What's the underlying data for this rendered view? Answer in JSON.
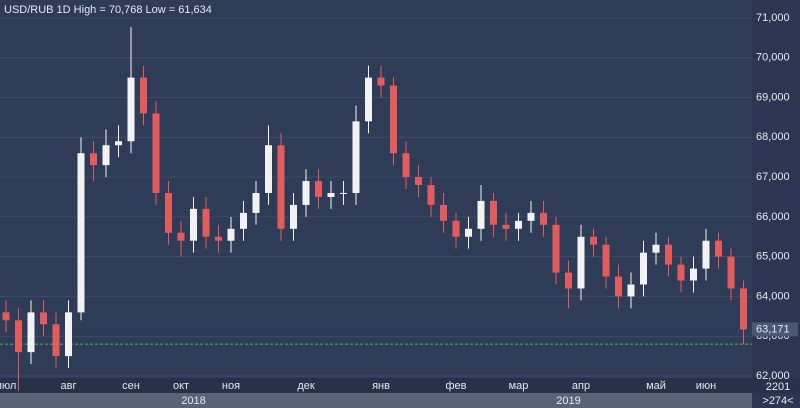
{
  "chart_data": {
    "type": "candlestick",
    "title": "USD/RUB 1D High = 70,768 Low = 61,634",
    "categories": [
      "июл",
      null,
      null,
      null,
      null,
      "авг",
      null,
      null,
      null,
      null,
      "сен",
      null,
      null,
      null,
      "окт",
      null,
      null,
      null,
      "ноя",
      null,
      null,
      null,
      null,
      null,
      "дек",
      null,
      null,
      null,
      null,
      null,
      "янв",
      null,
      null,
      null,
      null,
      null,
      "фев",
      null,
      null,
      null,
      null,
      "мар",
      null,
      null,
      null,
      null,
      "апр",
      null,
      null,
      null,
      null,
      null,
      "май",
      null,
      null,
      null,
      "июн",
      null,
      null,
      null
    ],
    "years": [
      null,
      null,
      null,
      null,
      null,
      null,
      null,
      null,
      null,
      null,
      null,
      null,
      null,
      null,
      null,
      "2018",
      null,
      null,
      null,
      null,
      null,
      null,
      null,
      null,
      null,
      null,
      null,
      null,
      null,
      null,
      null,
      null,
      null,
      null,
      null,
      null,
      null,
      null,
      null,
      null,
      null,
      null,
      null,
      null,
      null,
      "2019",
      null,
      null,
      null,
      null,
      null,
      null,
      null,
      null,
      null,
      null,
      null,
      null,
      null,
      null
    ],
    "open": [
      63.6,
      63.4,
      62.6,
      63.6,
      63.3,
      62.5,
      63.6,
      67.6,
      67.3,
      67.8,
      67.9,
      69.5,
      68.6,
      66.6,
      65.6,
      65.4,
      66.2,
      65.5,
      65.4,
      65.7,
      66.1,
      66.6,
      67.8,
      65.7,
      66.3,
      66.9,
      66.5,
      66.6,
      66.6,
      68.4,
      69.5,
      69.3,
      67.6,
      67.0,
      66.8,
      66.3,
      65.9,
      65.5,
      65.7,
      66.4,
      65.8,
      65.7,
      65.9,
      66.1,
      65.8,
      64.6,
      64.2,
      65.5,
      65.3,
      64.5,
      64.0,
      64.3,
      65.1,
      65.3,
      64.8,
      64.4,
      64.7,
      65.4,
      65.0,
      64.2
    ],
    "high": [
      63.9,
      63.7,
      63.9,
      63.9,
      63.6,
      63.9,
      68.0,
      67.9,
      68.2,
      68.3,
      70.768,
      69.8,
      68.9,
      66.9,
      65.9,
      66.5,
      66.5,
      65.8,
      66.0,
      66.4,
      66.9,
      68.3,
      68.1,
      66.6,
      67.2,
      67.2,
      66.9,
      66.9,
      68.8,
      69.8,
      69.8,
      69.5,
      67.9,
      67.3,
      67.0,
      66.6,
      66.1,
      66.0,
      66.8,
      66.6,
      66.1,
      66.1,
      66.4,
      66.4,
      66.0,
      64.9,
      65.8,
      65.7,
      65.5,
      64.8,
      64.6,
      65.4,
      65.6,
      65.5,
      65.0,
      65.0,
      65.7,
      65.6,
      65.2,
      64.4
    ],
    "low": [
      63.1,
      61.634,
      62.3,
      63.0,
      62.2,
      62.2,
      63.4,
      66.9,
      67.0,
      67.5,
      67.6,
      68.3,
      66.3,
      65.3,
      65.0,
      65.1,
      65.2,
      65.1,
      65.1,
      65.4,
      65.8,
      66.3,
      65.4,
      65.4,
      66.0,
      66.2,
      66.2,
      66.3,
      66.3,
      68.1,
      69.0,
      67.3,
      66.7,
      66.5,
      66.0,
      65.6,
      65.2,
      65.2,
      65.4,
      65.5,
      65.4,
      65.4,
      65.6,
      65.5,
      64.3,
      63.7,
      63.9,
      65.0,
      64.2,
      63.7,
      63.7,
      64.0,
      64.8,
      64.5,
      64.1,
      64.1,
      64.4,
      64.7,
      63.9,
      62.8
    ],
    "close": [
      63.4,
      62.6,
      63.6,
      63.3,
      62.5,
      63.6,
      67.6,
      67.3,
      67.8,
      67.9,
      69.5,
      68.6,
      66.6,
      65.6,
      65.4,
      66.2,
      65.5,
      65.4,
      65.7,
      66.1,
      66.6,
      67.8,
      65.7,
      66.3,
      66.9,
      66.5,
      66.6,
      66.6,
      68.4,
      69.5,
      69.3,
      67.6,
      67.0,
      66.8,
      66.3,
      65.9,
      65.5,
      65.7,
      66.4,
      65.8,
      65.7,
      65.9,
      66.1,
      65.8,
      64.6,
      64.2,
      65.5,
      65.3,
      64.5,
      64.0,
      64.3,
      65.1,
      65.3,
      64.8,
      64.4,
      64.7,
      65.4,
      65.0,
      64.2,
      63.171
    ],
    "up_color": "#f2f2f2",
    "down_color": "#e35b5b",
    "ylim": [
      61.95,
      71.45
    ],
    "yticks": [
      {
        "value": 62,
        "label": "62,000"
      },
      {
        "value": 63,
        "label": "63,000"
      },
      {
        "value": 64,
        "label": "64,000"
      },
      {
        "value": 65,
        "label": "65,000"
      },
      {
        "value": 66,
        "label": "66,000"
      },
      {
        "value": 67,
        "label": "67,000"
      },
      {
        "value": 68,
        "label": "68,000"
      },
      {
        "value": 69,
        "label": "69,000"
      },
      {
        "value": 70,
        "label": "70,000"
      },
      {
        "value": 71,
        "label": "71,000"
      }
    ],
    "grid": true,
    "last_price": {
      "value": 63.171,
      "label": "63,171"
    },
    "reference_line": {
      "value": 62.8,
      "color": "#3fbf4a"
    },
    "footer_left": "2201",
    "footer_right": ">274<"
  }
}
